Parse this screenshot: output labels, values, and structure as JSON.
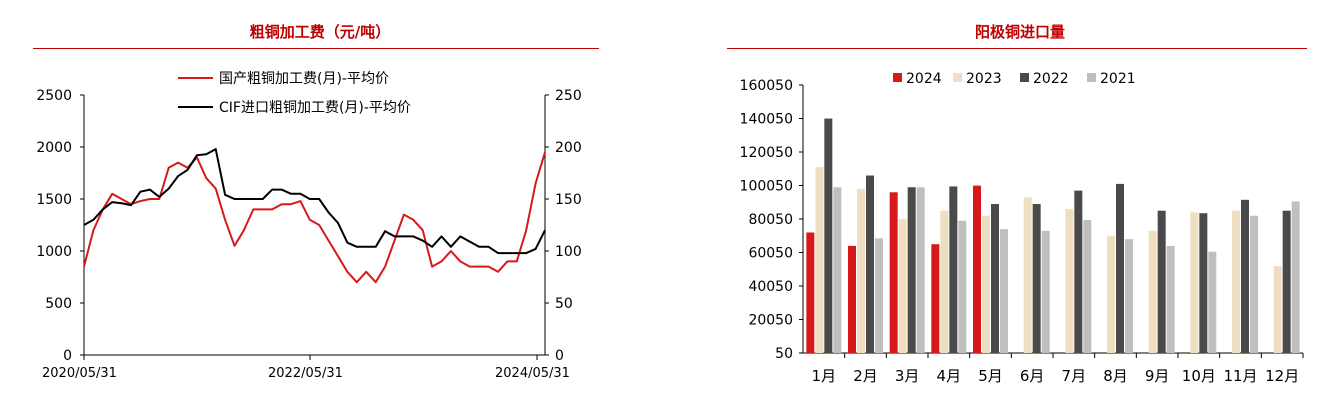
{
  "chart_data": [
    {
      "type": "line",
      "title": "粗铜加工费（元/吨）",
      "x_tick_labels": [
        "2020/05/31",
        "2022/05/31",
        "2024/05/31"
      ],
      "y_left": {
        "ticks": [
          "0",
          "500",
          "1000",
          "1500",
          "2000",
          "2500"
        ],
        "ylim": [
          0,
          2500
        ]
      },
      "y_right": {
        "ticks": [
          "0",
          "50",
          "100",
          "150",
          "200",
          "250"
        ],
        "ylim": [
          0,
          250
        ]
      },
      "legend_position": "top-center",
      "series": [
        {
          "name": "国产粗铜加工费(月)-平均价",
          "axis": "left",
          "color": "#d7191c",
          "values": [
            850,
            1200,
            1400,
            1550,
            1500,
            1450,
            1480,
            1500,
            1500,
            1800,
            1850,
            1800,
            1900,
            1700,
            1600,
            1300,
            1050,
            1200,
            1400,
            1400,
            1400,
            1450,
            1450,
            1480,
            1300,
            1250,
            1100,
            950,
            800,
            700,
            800,
            700,
            850,
            1100,
            1350,
            1300,
            1200,
            850,
            900,
            1000,
            900,
            850,
            850,
            850,
            800,
            900,
            900,
            1200,
            1650,
            1950
          ]
        },
        {
          "name": "CIF进口粗铜加工费(月)-平均价",
          "axis": "right",
          "color": "#000000",
          "values": [
            125,
            130,
            140,
            147,
            146,
            144,
            157,
            159,
            152,
            160,
            172,
            178,
            192,
            193,
            198,
            154,
            150,
            150,
            150,
            150,
            159,
            159,
            155,
            155,
            150,
            150,
            137,
            127,
            108,
            104,
            104,
            104,
            119,
            114,
            114,
            114,
            110,
            104,
            114,
            104,
            114,
            109,
            104,
            104,
            98,
            98,
            98,
            98,
            102,
            120
          ]
        }
      ]
    },
    {
      "type": "bar",
      "title": "阳极铜进口量",
      "categories": [
        "1月",
        "2月",
        "3月",
        "4月",
        "5月",
        "6月",
        "7月",
        "8月",
        "9月",
        "10月",
        "11月",
        "12月"
      ],
      "y_ticks": [
        "50",
        "20050",
        "40050",
        "60050",
        "80050",
        "100050",
        "120050",
        "140050",
        "160050"
      ],
      "ylim": [
        50,
        160050
      ],
      "legend_position": "top",
      "series": [
        {
          "name": "2024",
          "color": "#d7191c",
          "values": [
            72000,
            64000,
            96000,
            65000,
            100000,
            null,
            null,
            null,
            null,
            null,
            null,
            null
          ]
        },
        {
          "name": "2023",
          "color": "#eedfc0",
          "values": [
            111000,
            98000,
            80000,
            85000,
            82000,
            93000,
            86000,
            70000,
            73000,
            84000,
            85000,
            52000
          ]
        },
        {
          "name": "2022",
          "color": "#4a4a4a",
          "values": [
            140000,
            106000,
            99000,
            99500,
            89000,
            89000,
            97000,
            101000,
            85000,
            83500,
            91500,
            85000
          ]
        },
        {
          "name": "2021",
          "color": "#bfbfbf",
          "values": [
            99000,
            68500,
            99000,
            79000,
            74000,
            73000,
            79500,
            68000,
            64000,
            60500,
            82000,
            90500
          ]
        }
      ]
    }
  ]
}
